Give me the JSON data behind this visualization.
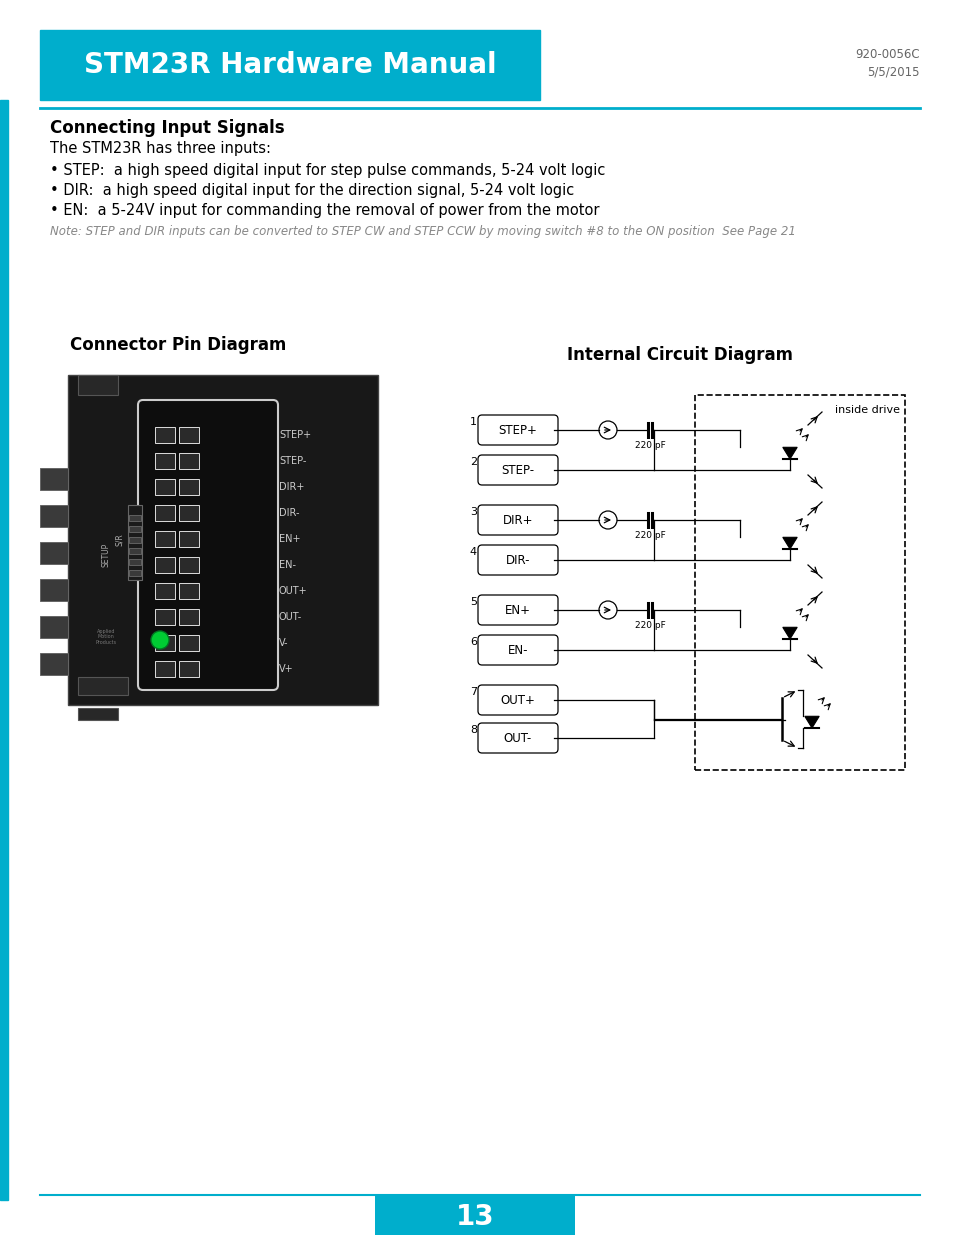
{
  "title": "STM23R Hardware Manual",
  "doc_number": "920-0056C",
  "doc_date": "5/5/2015",
  "page_number": "13",
  "header_bg": "#00AECC",
  "header_text_color": "#FFFFFF",
  "left_bar_color": "#00AECC",
  "page_bg": "#FFFFFF",
  "section_title": "Connecting Input Signals",
  "section_body": "The STM23R has three inputs:",
  "bullets": [
    "• STEP:  a high speed digital input for step pulse commands, 5-24 volt logic",
    "• DIR:  a high speed digital input for the direction signal, 5-24 volt logic",
    "• EN:  a 5-24V input for commanding the removal of power from the motor"
  ],
  "note": "Note: STEP and DIR inputs can be converted to STEP CW and STEP CCW by moving switch #8 to the ON position  See Page 21",
  "connector_title": "Connector Pin Diagram",
  "circuit_title": "Internal Circuit Diagram",
  "pin_labels_connector": [
    "STEP+",
    "STEP-",
    "DIR+",
    "DIR-",
    "EN+",
    "EN-",
    "OUT+",
    "OUT-",
    "V-",
    "V+"
  ],
  "circuit_pins": [
    {
      "num": 1,
      "label": "STEP+",
      "type": "opto_pos"
    },
    {
      "num": 2,
      "label": "STEP-",
      "type": "opto_neg"
    },
    {
      "num": 3,
      "label": "DIR+",
      "type": "opto_pos"
    },
    {
      "num": 4,
      "label": "DIR-",
      "type": "opto_neg"
    },
    {
      "num": 5,
      "label": "EN+",
      "type": "opto_pos"
    },
    {
      "num": 6,
      "label": "EN-",
      "type": "opto_neg"
    },
    {
      "num": 7,
      "label": "OUT+",
      "type": "out_pos"
    },
    {
      "num": 8,
      "label": "OUT-",
      "type": "out_neg"
    }
  ],
  "cap_label": "220 pF",
  "footer_bg": "#00AECC",
  "footer_text_color": "#FFFFFF"
}
